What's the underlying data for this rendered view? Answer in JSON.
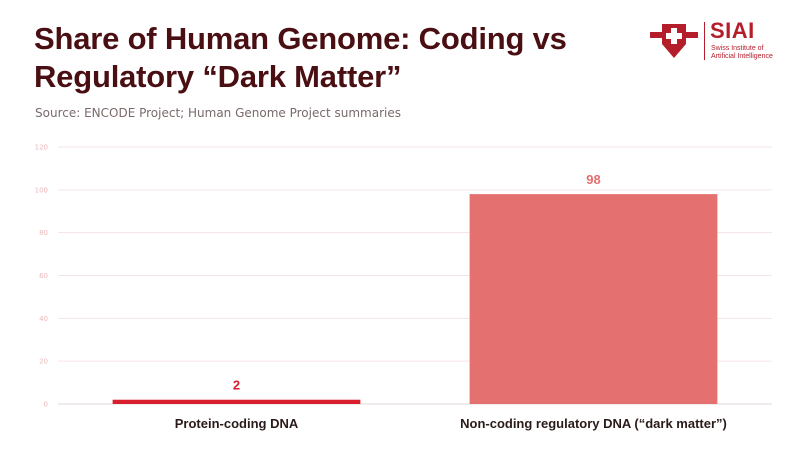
{
  "header": {
    "title": "Share of Human Genome: Coding vs Regulatory “Dark Matter”",
    "subtitle": "Source: ENCODE Project; Human Genome Project summaries"
  },
  "logo": {
    "brand": "SIAI",
    "tagline": "Swiss Institute of Artificial Intelligence",
    "color": "#b41e2a"
  },
  "chart_data": {
    "type": "bar",
    "categories": [
      "Protein-coding DNA",
      "Non-coding regulatory DNA (“dark matter”)"
    ],
    "values": [
      2,
      98
    ],
    "colors": [
      "#d81f2e",
      "#e57070"
    ],
    "label_colors": [
      "#d81f2e",
      "#e57070"
    ],
    "ylim": [
      0,
      120
    ],
    "yticks": [
      0,
      20,
      40,
      60,
      80,
      100,
      120
    ],
    "grid": true,
    "legend": "none",
    "title": "Share of Human Genome: Coding vs Regulatory “Dark Matter”",
    "xlabel": "",
    "ylabel": ""
  }
}
